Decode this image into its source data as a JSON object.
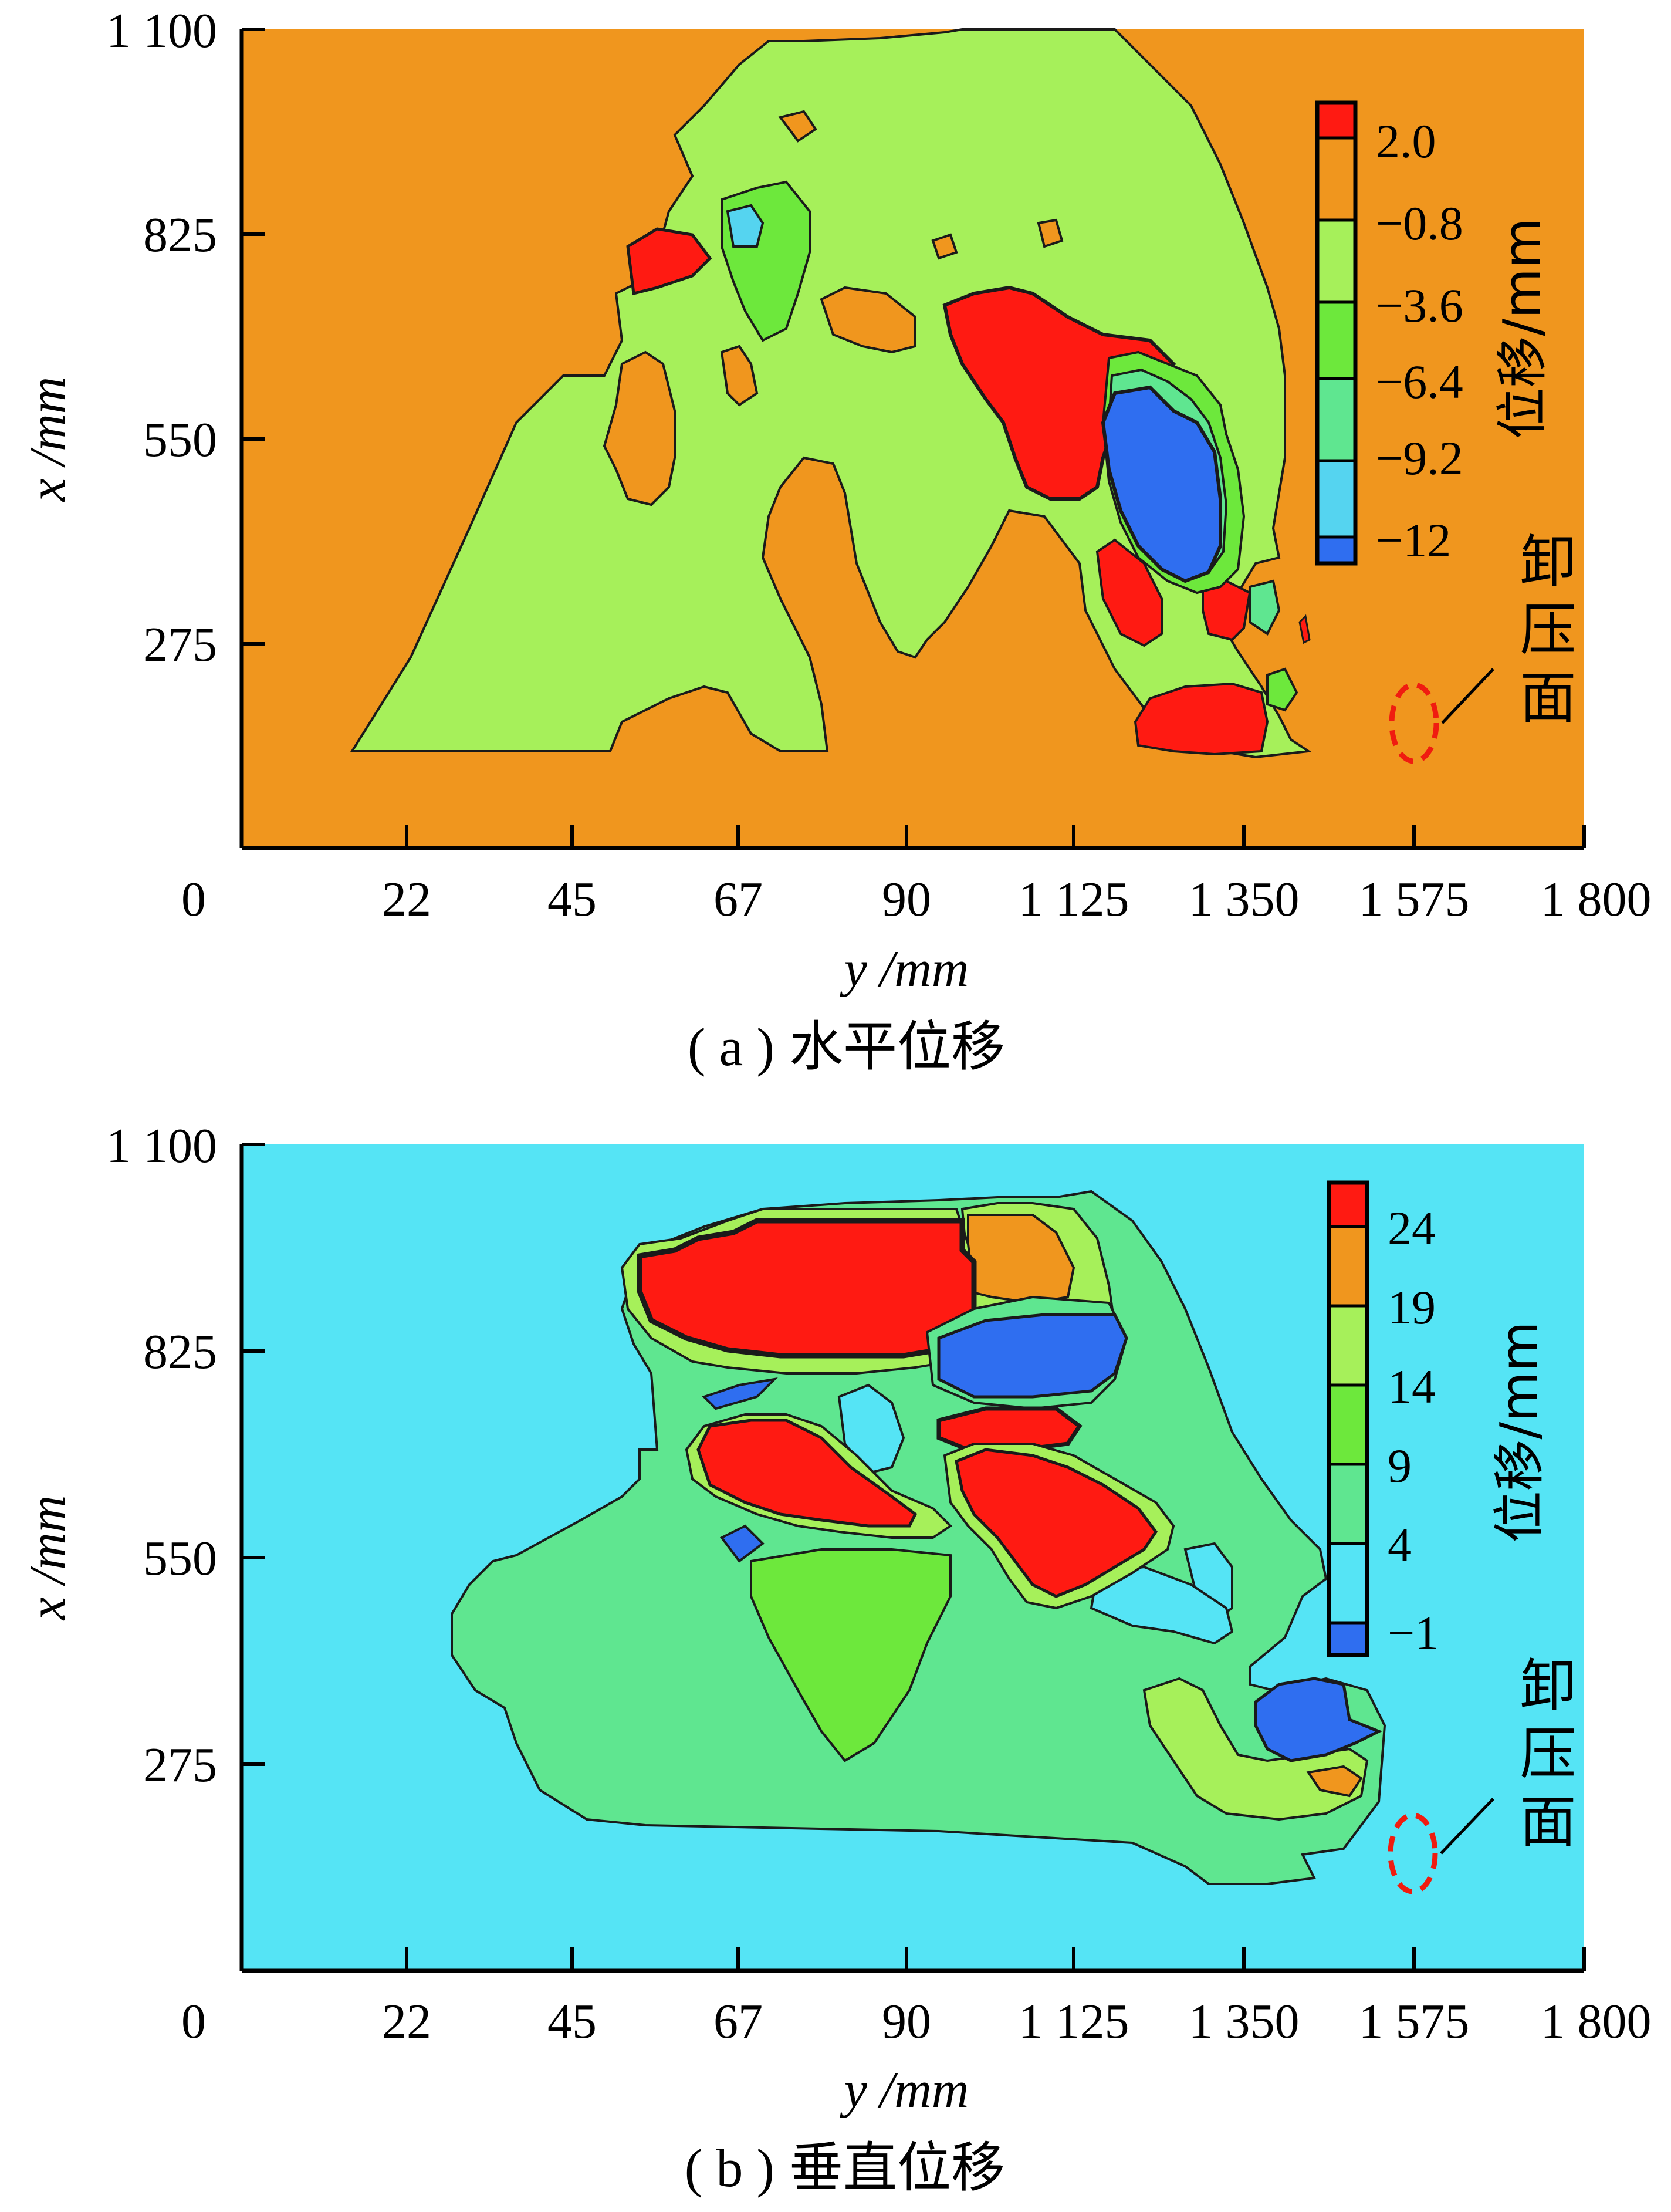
{
  "chart_data": [
    {
      "type": "heatmap",
      "panel": "(a)",
      "caption_label": "( a )",
      "caption_text": "水平位移",
      "xlabel": "y /mm",
      "ylabel": "x /mm",
      "x_tick_labels": [
        "0",
        "22",
        "45",
        "67",
        "90",
        "1 125",
        "1 350",
        "1 575",
        "1 800"
      ],
      "y_tick_labels": [
        "1 100",
        "825",
        "550",
        "275"
      ],
      "colorbar": {
        "title": "位移/mm",
        "labels": [
          "2.0",
          "−0.8",
          "−3.6",
          "−6.4",
          "−9.2",
          "−12"
        ],
        "colors": [
          "#ff1a12",
          "#f0961e",
          "#a6f05a",
          "#6de83c",
          "#5fe690",
          "#55d4f0",
          "#2f6ef0"
        ]
      },
      "annotation": "卸压面",
      "background_color": "#f0961e"
    },
    {
      "type": "heatmap",
      "panel": "(b)",
      "caption_label": "( b )",
      "caption_text": "垂直位移",
      "xlabel": "y /mm",
      "ylabel": "x /mm",
      "x_tick_labels": [
        "0",
        "22",
        "45",
        "67",
        "90",
        "1 125",
        "1 350",
        "1 575",
        "1 800"
      ],
      "y_tick_labels": [
        "1 100",
        "825",
        "550",
        "275"
      ],
      "colorbar": {
        "title": "位移/mm",
        "labels": [
          "24",
          "19",
          "14",
          "9",
          "4",
          "−1"
        ],
        "colors": [
          "#ff1a12",
          "#f0961e",
          "#a6f05a",
          "#6de83c",
          "#5fe690",
          "#55e4f5",
          "#2f6ef0"
        ]
      },
      "annotation": "卸压面",
      "background_color": "#55e4f5"
    }
  ]
}
